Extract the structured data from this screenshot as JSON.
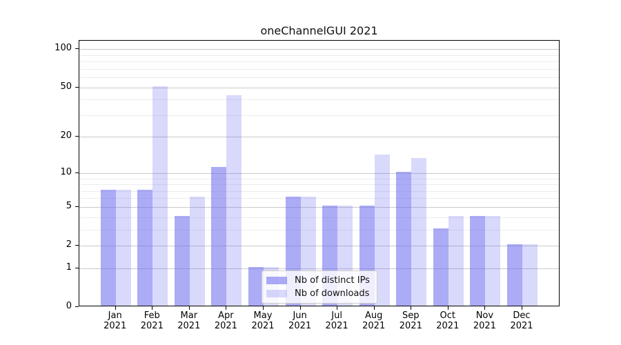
{
  "figure": {
    "title": "oneChannelGUI 2021"
  },
  "chart_data": {
    "type": "bar",
    "title": "oneChannelGUI 2021",
    "categories": [
      "Jan",
      "Feb",
      "Mar",
      "Apr",
      "May",
      "Jun",
      "Jul",
      "Aug",
      "Sep",
      "Oct",
      "Nov",
      "Dec"
    ],
    "year_label": "2021",
    "series": [
      {
        "name": "Nb of distinct IPs",
        "values": [
          7,
          7,
          4,
          11,
          1,
          6,
          5,
          5,
          10,
          3,
          4,
          2
        ],
        "color": "rgba(102,102,238,0.55)"
      },
      {
        "name": "Nb of downloads",
        "values": [
          7,
          50,
          6,
          42,
          1,
          6,
          5,
          14,
          13,
          4,
          4,
          2
        ],
        "color": "rgba(102,102,238,0.25)"
      }
    ],
    "xlabel": "",
    "ylabel": "",
    "yscale": "log1p",
    "ylim": [
      0,
      116.4
    ],
    "y_ticks": [
      0,
      1,
      2,
      5,
      10,
      20,
      50,
      100
    ],
    "y_minor_gridlines": [
      3,
      4,
      6,
      7,
      8,
      9,
      30,
      40,
      60,
      70,
      80,
      90
    ],
    "grid": true,
    "legend_position": "lower center"
  },
  "legend": {
    "items": [
      {
        "label": "Nb of distinct IPs"
      },
      {
        "label": "Nb of downloads"
      }
    ]
  },
  "colors": {
    "bar_base": "#6666ee",
    "grid_major": "#c9c9c9",
    "grid_minor": "#ececec",
    "spine": "#000000",
    "text": "#000000",
    "legend_border": "#cccccc",
    "background": "#ffffff"
  }
}
